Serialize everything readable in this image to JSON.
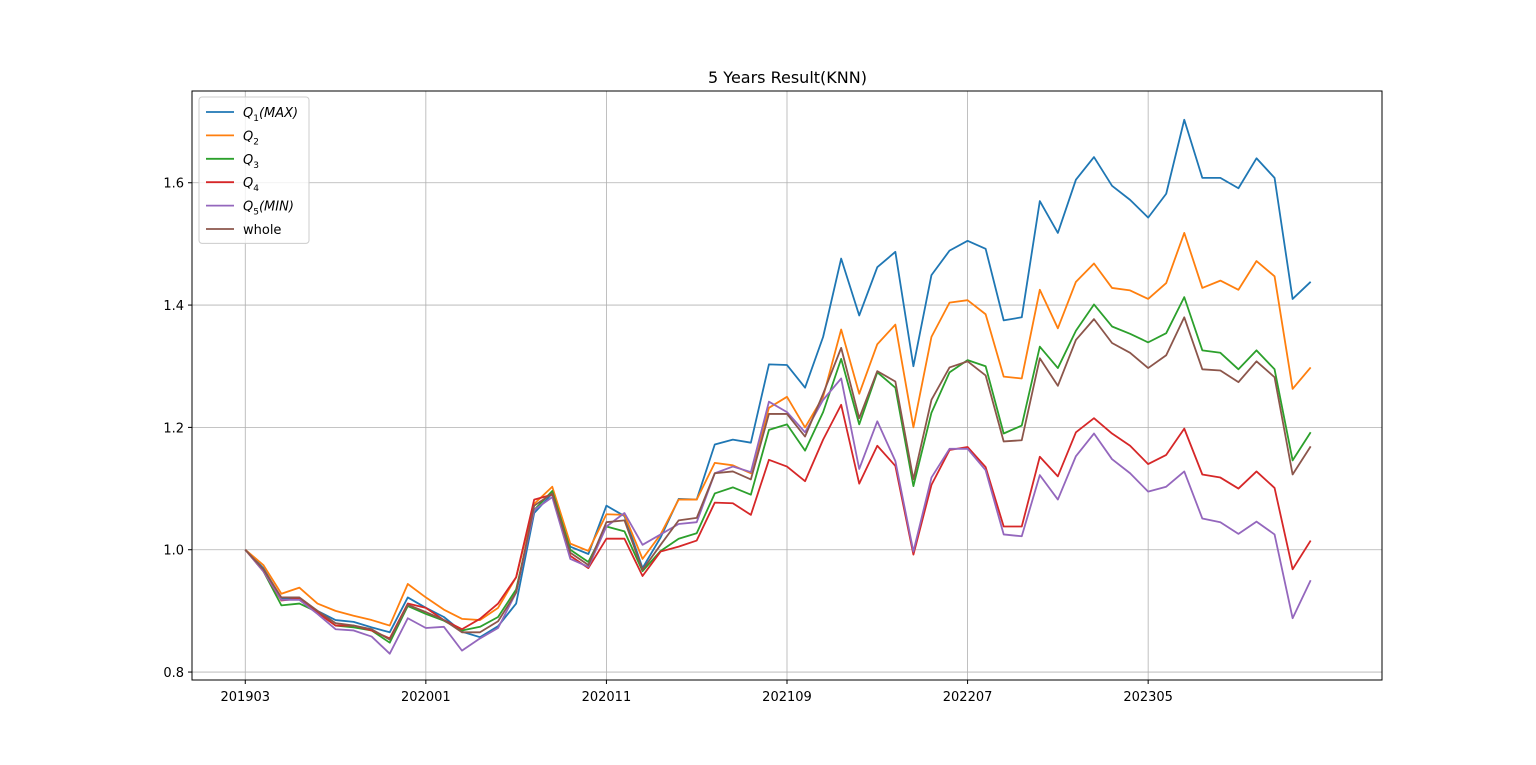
{
  "chart_data": {
    "type": "line",
    "title": "5 Years Result(KNN)",
    "xlabel": "",
    "ylabel": "",
    "grid": true,
    "legend_position": "top-left",
    "x_tick_labels": [
      "201903",
      "202001",
      "202011",
      "202109",
      "202207",
      "202305"
    ],
    "x_tick_index": [
      0,
      10,
      20,
      30,
      40,
      50
    ],
    "y_ticks": [
      0.8,
      1.0,
      1.2,
      1.4,
      1.6
    ],
    "ylim": [
      0.787,
      1.75
    ],
    "xlim_index": [
      -2.95,
      62.95
    ],
    "series": [
      {
        "name": "Q1(MAX)",
        "base": "Q",
        "sub": "1",
        "suffix": "(MAX)",
        "color": "#1f77b4",
        "values": [
          1.0,
          0.97,
          0.92,
          0.92,
          0.9,
          0.885,
          0.882,
          0.873,
          0.865,
          0.922,
          0.905,
          0.89,
          0.866,
          0.857,
          0.875,
          0.912,
          1.06,
          1.092,
          1.005,
          0.993,
          1.072,
          1.055,
          0.97,
          1.02,
          1.083,
          1.082,
          1.172,
          1.18,
          1.175,
          1.303,
          1.302,
          1.265,
          1.348,
          1.476,
          1.383,
          1.462,
          1.487,
          1.3,
          1.449,
          1.489,
          1.505,
          1.492,
          1.375,
          1.38,
          1.57,
          1.518,
          1.605,
          1.642,
          1.595,
          1.572,
          1.543,
          1.582,
          1.703,
          1.608,
          1.608,
          1.591,
          1.64,
          1.608,
          1.41,
          1.438
        ]
      },
      {
        "name": "Q2",
        "base": "Q",
        "sub": "2",
        "suffix": "",
        "color": "#ff7f0e",
        "values": [
          1.0,
          0.975,
          0.928,
          0.938,
          0.912,
          0.9,
          0.892,
          0.885,
          0.876,
          0.944,
          0.922,
          0.902,
          0.887,
          0.885,
          0.905,
          0.955,
          1.075,
          1.103,
          1.01,
          0.998,
          1.058,
          1.057,
          0.985,
          1.025,
          1.082,
          1.082,
          1.142,
          1.138,
          1.125,
          1.232,
          1.25,
          1.2,
          1.25,
          1.36,
          1.255,
          1.336,
          1.368,
          1.2,
          1.348,
          1.404,
          1.408,
          1.385,
          1.283,
          1.28,
          1.425,
          1.362,
          1.438,
          1.468,
          1.428,
          1.424,
          1.41,
          1.436,
          1.518,
          1.428,
          1.44,
          1.425,
          1.472,
          1.447,
          1.263,
          1.298
        ]
      },
      {
        "name": "Q3",
        "base": "Q",
        "sub": "3",
        "suffix": "",
        "color": "#2ca02c",
        "values": [
          1.0,
          0.965,
          0.909,
          0.912,
          0.898,
          0.876,
          0.873,
          0.868,
          0.848,
          0.908,
          0.895,
          0.884,
          0.868,
          0.874,
          0.89,
          0.935,
          1.065,
          1.096,
          1.0,
          0.98,
          1.038,
          1.03,
          0.965,
          0.998,
          1.018,
          1.027,
          1.092,
          1.102,
          1.09,
          1.196,
          1.205,
          1.162,
          1.225,
          1.312,
          1.205,
          1.29,
          1.265,
          1.104,
          1.224,
          1.29,
          1.31,
          1.3,
          1.19,
          1.203,
          1.332,
          1.297,
          1.358,
          1.401,
          1.365,
          1.353,
          1.339,
          1.354,
          1.413,
          1.326,
          1.322,
          1.295,
          1.326,
          1.295,
          1.146,
          1.192
        ]
      },
      {
        "name": "Q4",
        "base": "Q",
        "sub": "4",
        "suffix": "",
        "color": "#d62728",
        "values": [
          1.0,
          0.965,
          0.917,
          0.92,
          0.897,
          0.876,
          0.876,
          0.868,
          0.855,
          0.912,
          0.905,
          0.885,
          0.87,
          0.887,
          0.912,
          0.955,
          1.082,
          1.09,
          0.99,
          0.97,
          1.018,
          1.018,
          0.957,
          0.997,
          1.005,
          1.015,
          1.077,
          1.076,
          1.057,
          1.147,
          1.136,
          1.112,
          1.18,
          1.237,
          1.108,
          1.17,
          1.137,
          0.992,
          1.106,
          1.163,
          1.168,
          1.135,
          1.038,
          1.038,
          1.152,
          1.12,
          1.192,
          1.215,
          1.19,
          1.17,
          1.14,
          1.155,
          1.198,
          1.123,
          1.118,
          1.1,
          1.128,
          1.101,
          0.968,
          1.015
        ]
      },
      {
        "name": "Q5(MIN)",
        "base": "Q",
        "sub": "5",
        "suffix": "(MIN)",
        "color": "#9467bd",
        "values": [
          1.0,
          0.965,
          0.918,
          0.918,
          0.895,
          0.87,
          0.868,
          0.858,
          0.83,
          0.888,
          0.872,
          0.874,
          0.835,
          0.855,
          0.872,
          0.93,
          1.065,
          1.086,
          0.985,
          0.972,
          1.038,
          1.06,
          1.008,
          1.025,
          1.042,
          1.045,
          1.125,
          1.136,
          1.127,
          1.242,
          1.225,
          1.192,
          1.245,
          1.28,
          1.132,
          1.21,
          1.145,
          0.997,
          1.118,
          1.165,
          1.165,
          1.13,
          1.025,
          1.022,
          1.122,
          1.082,
          1.153,
          1.19,
          1.148,
          1.125,
          1.095,
          1.103,
          1.128,
          1.051,
          1.045,
          1.026,
          1.046,
          1.025,
          0.888,
          0.95
        ]
      },
      {
        "name": "whole",
        "base": "whole",
        "sub": "",
        "suffix": "",
        "color": "#8c564b",
        "values": [
          1.0,
          0.968,
          0.922,
          0.922,
          0.9,
          0.88,
          0.876,
          0.87,
          0.853,
          0.91,
          0.898,
          0.885,
          0.865,
          0.865,
          0.883,
          0.93,
          1.072,
          1.092,
          0.995,
          0.975,
          1.045,
          1.048,
          0.967,
          1.008,
          1.048,
          1.052,
          1.125,
          1.128,
          1.115,
          1.222,
          1.222,
          1.185,
          1.255,
          1.33,
          1.215,
          1.292,
          1.275,
          1.115,
          1.245,
          1.298,
          1.308,
          1.285,
          1.177,
          1.179,
          1.313,
          1.268,
          1.343,
          1.377,
          1.338,
          1.322,
          1.297,
          1.318,
          1.38,
          1.295,
          1.293,
          1.274,
          1.308,
          1.282,
          1.123,
          1.169
        ]
      }
    ]
  }
}
